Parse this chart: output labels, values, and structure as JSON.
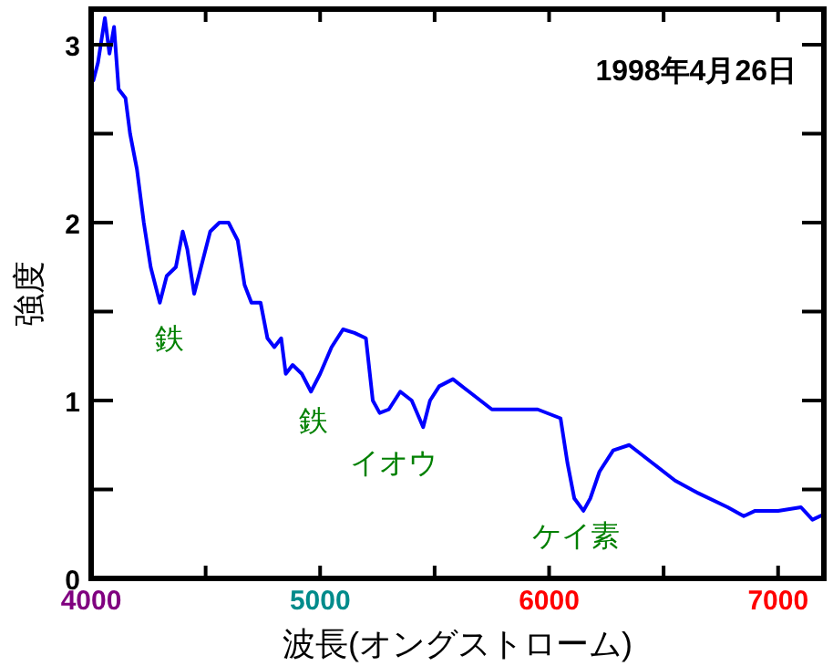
{
  "chart_data": {
    "type": "line",
    "title": "1998年4月26日",
    "xlabel": "波長(オングストローム)",
    "ylabel": "強度",
    "xlim": [
      4000,
      7200
    ],
    "ylim": [
      0,
      3.2
    ],
    "xticks": [
      4000,
      {
        "value": 4500,
        "label": null
      },
      5000,
      {
        "value": 5500,
        "label": null
      },
      6000,
      {
        "value": 6500,
        "label": null
      },
      7000
    ],
    "yticks": [
      0,
      {
        "value": 0.5,
        "label": null
      },
      1,
      {
        "value": 1.5,
        "label": null
      },
      2,
      {
        "value": 2.5,
        "label": null
      },
      3
    ],
    "grid": false,
    "marker": "none",
    "line_style": "solid",
    "series": [
      {
        "color": "#0000ff",
        "x": [
          4010,
          4030,
          4060,
          4080,
          4100,
          4120,
          4150,
          4170,
          4200,
          4230,
          4260,
          4280,
          4300,
          4330,
          4370,
          4400,
          4420,
          4450,
          4480,
          4520,
          4560,
          4600,
          4640,
          4670,
          4700,
          4740,
          4770,
          4800,
          4830,
          4850,
          4880,
          4920,
          4960,
          5000,
          5050,
          5100,
          5150,
          5200,
          5230,
          5260,
          5300,
          5350,
          5400,
          5450,
          5480,
          5520,
          5580,
          5650,
          5700,
          5750,
          5850,
          5950,
          6050,
          6080,
          6110,
          6150,
          6180,
          6220,
          6280,
          6350,
          6450,
          6550,
          6650,
          6780,
          6850,
          6900,
          7000,
          7100,
          7150,
          7200
        ],
        "values": [
          2.8,
          2.9,
          3.15,
          2.95,
          3.1,
          2.75,
          2.7,
          2.5,
          2.3,
          2.0,
          1.75,
          1.65,
          1.55,
          1.7,
          1.75,
          1.95,
          1.85,
          1.6,
          1.75,
          1.95,
          2.0,
          2.0,
          1.9,
          1.65,
          1.55,
          1.55,
          1.35,
          1.3,
          1.35,
          1.15,
          1.2,
          1.15,
          1.05,
          1.15,
          1.3,
          1.4,
          1.38,
          1.35,
          1.0,
          0.93,
          0.95,
          1.05,
          1.0,
          0.85,
          1.0,
          1.08,
          1.12,
          1.05,
          1.0,
          0.95,
          0.95,
          0.95,
          0.9,
          0.65,
          0.45,
          0.38,
          0.45,
          0.6,
          0.72,
          0.75,
          0.65,
          0.55,
          0.48,
          0.4,
          0.35,
          0.38,
          0.38,
          0.4,
          0.33,
          0.36
        ]
      }
    ],
    "annotations": [
      "鉄",
      "鉄",
      "イオウ",
      "ケイ素"
    ]
  }
}
